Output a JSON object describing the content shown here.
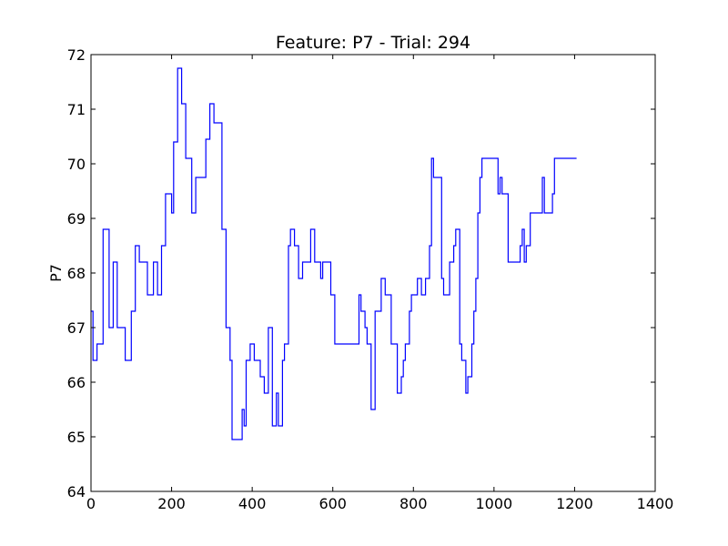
{
  "chart_data": {
    "type": "line",
    "title": "Feature: P7 - Trial: 294",
    "xlabel": "",
    "ylabel": "P7",
    "xlim": [
      0,
      1400
    ],
    "ylim": [
      64,
      72
    ],
    "xticks": [
      0,
      200,
      400,
      600,
      800,
      1000,
      1200,
      1400
    ],
    "yticks": [
      64,
      65,
      66,
      67,
      68,
      69,
      70,
      71,
      72
    ],
    "grid": false,
    "colors": {
      "series": "#0000ff",
      "axes": "#000000",
      "background": "#ffffff"
    },
    "series": [
      {
        "style": "steps-post",
        "x": [
          0,
          5,
          15,
          30,
          45,
          50,
          55,
          65,
          85,
          100,
          110,
          120,
          140,
          155,
          165,
          175,
          185,
          200,
          205,
          215,
          225,
          235,
          250,
          260,
          270,
          285,
          295,
          300,
          305,
          310,
          325,
          335,
          340,
          345,
          350,
          355,
          360,
          375,
          380,
          385,
          395,
          405,
          420,
          425,
          430,
          440,
          450,
          455,
          460,
          465,
          470,
          475,
          480,
          485,
          490,
          495,
          505,
          510,
          515,
          520,
          525,
          530,
          535,
          540,
          545,
          555,
          570,
          575,
          580,
          585,
          590,
          595,
          605,
          615,
          620,
          625,
          630,
          640,
          650,
          655,
          660,
          665,
          670,
          675,
          680,
          685,
          690,
          695,
          700,
          705,
          710,
          715,
          720,
          730,
          745,
          760,
          765,
          770,
          775,
          780,
          785,
          790,
          795,
          800,
          805,
          810,
          815,
          820,
          830,
          835,
          840,
          845,
          850,
          855,
          860,
          865,
          870,
          875,
          880,
          885,
          890,
          895,
          900,
          905,
          915,
          920,
          925,
          930,
          935,
          940,
          945,
          950,
          955,
          960,
          965,
          970,
          975,
          980,
          985,
          990,
          995,
          1000,
          1005,
          1010,
          1015,
          1020,
          1025,
          1030,
          1035,
          1040,
          1045,
          1050,
          1055,
          1060,
          1065,
          1070,
          1075,
          1080,
          1085,
          1090,
          1095,
          1100,
          1110,
          1120,
          1125,
          1130,
          1135,
          1140,
          1145,
          1150,
          1155,
          1160,
          1165,
          1170,
          1175,
          1180,
          1185,
          1190,
          1195,
          1200,
          1205
        ],
        "y": [
          67.3,
          66.4,
          66.7,
          68.8,
          67.0,
          67.0,
          68.2,
          67.0,
          66.4,
          67.3,
          68.5,
          68.2,
          67.6,
          68.2,
          67.6,
          68.5,
          69.45,
          69.1,
          70.4,
          71.75,
          71.1,
          70.1,
          69.1,
          69.75,
          69.75,
          70.45,
          71.1,
          71.1,
          70.75,
          70.75,
          68.8,
          67.0,
          67.0,
          66.4,
          64.95,
          64.95,
          64.95,
          65.5,
          65.2,
          66.4,
          66.7,
          66.4,
          66.1,
          66.1,
          65.8,
          67.0,
          65.2,
          65.2,
          65.8,
          65.2,
          65.2,
          66.4,
          66.7,
          66.7,
          68.5,
          68.8,
          68.5,
          68.5,
          67.9,
          67.9,
          68.2,
          68.2,
          68.2,
          68.2,
          68.8,
          68.2,
          67.9,
          68.2,
          68.2,
          68.2,
          68.2,
          67.6,
          66.7,
          66.7,
          66.7,
          66.7,
          66.7,
          66.7,
          66.7,
          66.7,
          66.7,
          67.6,
          67.3,
          67.3,
          67.0,
          66.7,
          66.7,
          65.5,
          65.5,
          67.3,
          67.3,
          67.3,
          67.9,
          67.6,
          66.7,
          65.8,
          65.8,
          66.1,
          66.4,
          66.7,
          66.7,
          67.3,
          67.6,
          67.6,
          67.6,
          67.9,
          67.9,
          67.6,
          67.9,
          67.9,
          68.5,
          70.1,
          69.75,
          69.75,
          69.75,
          69.75,
          67.9,
          67.6,
          67.6,
          67.6,
          68.2,
          68.2,
          68.5,
          68.8,
          66.7,
          66.4,
          66.4,
          65.8,
          66.1,
          66.1,
          66.7,
          67.3,
          67.9,
          69.1,
          69.75,
          70.1,
          70.1,
          70.1,
          70.1,
          70.1,
          70.1,
          70.1,
          70.1,
          69.45,
          69.75,
          69.45,
          69.45,
          69.45,
          68.2,
          68.2,
          68.2,
          68.2,
          68.2,
          68.2,
          68.5,
          68.8,
          68.2,
          68.5,
          68.5,
          69.1,
          69.1,
          69.1,
          69.1,
          69.75,
          69.1,
          69.1,
          69.1,
          69.1,
          69.45,
          70.1,
          70.1,
          70.1,
          70.1,
          70.1,
          70.1,
          70.1,
          70.1,
          70.1,
          70.1,
          70.1,
          70.1
        ]
      }
    ]
  }
}
